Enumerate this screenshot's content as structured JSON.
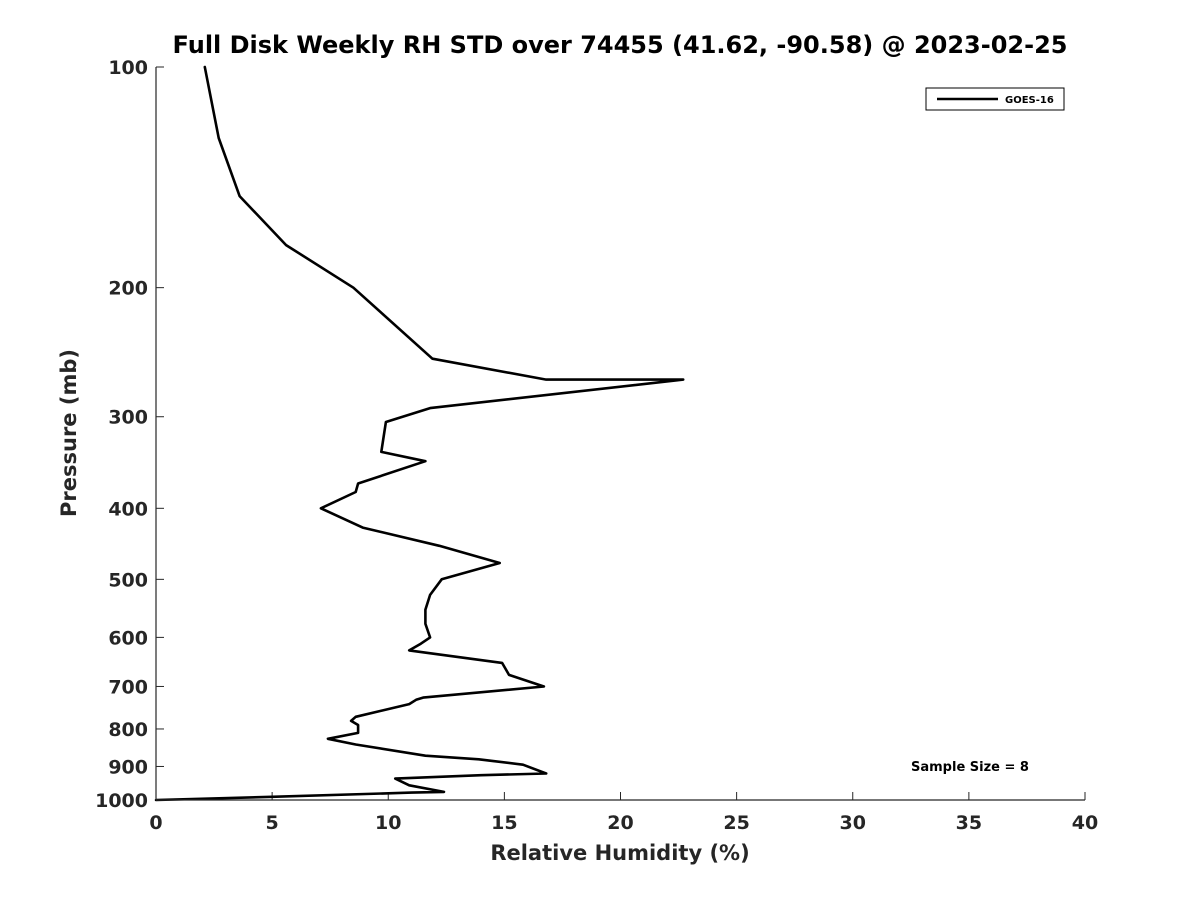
{
  "chart_data": {
    "type": "line",
    "title": "Full Disk Weekly RH STD over 74455 (41.62, -90.58) @ 2023-02-25",
    "xlabel": "Relative Humidity (%)",
    "ylabel": "Pressure (mb)",
    "xlim": [
      0,
      40
    ],
    "ylim": [
      100,
      1000
    ],
    "y_scale": "log",
    "y_reversed": true,
    "grid": false,
    "legend_position": "top-right",
    "x_ticks": [
      0,
      5,
      10,
      15,
      20,
      25,
      30,
      35,
      40
    ],
    "y_ticks": [
      100,
      200,
      300,
      400,
      500,
      600,
      700,
      800,
      900,
      1000
    ],
    "annotation": "Sample Size = 8",
    "series": [
      {
        "name": "GOES-16",
        "color": "#000000",
        "points": [
          [
            2.1,
            100
          ],
          [
            2.7,
            125
          ],
          [
            3.6,
            150
          ],
          [
            5.6,
            175
          ],
          [
            8.5,
            200
          ],
          [
            11.9,
            250
          ],
          [
            16.8,
            267
          ],
          [
            22.7,
            267
          ],
          [
            11.8,
            292
          ],
          [
            9.9,
            305
          ],
          [
            9.7,
            335
          ],
          [
            11.6,
            345
          ],
          [
            8.7,
            370
          ],
          [
            8.6,
            380
          ],
          [
            7.1,
            400
          ],
          [
            8.9,
            425
          ],
          [
            12.2,
            450
          ],
          [
            14.8,
            475
          ],
          [
            12.3,
            500
          ],
          [
            11.8,
            525
          ],
          [
            11.6,
            550
          ],
          [
            11.6,
            575
          ],
          [
            11.8,
            600
          ],
          [
            11.4,
            612
          ],
          [
            10.9,
            625
          ],
          [
            14.9,
            650
          ],
          [
            15.2,
            675
          ],
          [
            16.7,
            700
          ],
          [
            11.5,
            725
          ],
          [
            11.2,
            730
          ],
          [
            10.9,
            740
          ],
          [
            8.6,
            770
          ],
          [
            8.4,
            780
          ],
          [
            8.7,
            790
          ],
          [
            8.7,
            810
          ],
          [
            7.4,
            825
          ],
          [
            8.6,
            840
          ],
          [
            11.6,
            870
          ],
          [
            13.9,
            880
          ],
          [
            15.8,
            895
          ],
          [
            16.8,
            920
          ],
          [
            14.0,
            925
          ],
          [
            10.3,
            935
          ],
          [
            10.9,
            955
          ],
          [
            12.4,
            975
          ],
          [
            11.0,
            977
          ],
          [
            5.0,
            990
          ],
          [
            0.0,
            1000
          ]
        ]
      }
    ]
  }
}
